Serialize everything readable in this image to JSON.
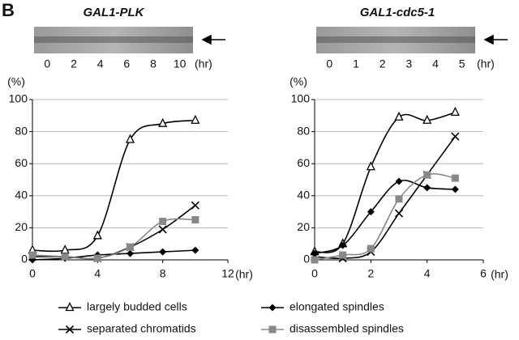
{
  "panel_label": "B",
  "chart_data": [
    {
      "type": "line",
      "title": "GAL1-PLK",
      "gel_lanes": [
        0,
        2,
        4,
        6,
        8,
        10
      ],
      "gel_unit": "(hr)",
      "y_label": "(%)",
      "x_label": "(hr)",
      "x": [
        0,
        2,
        4,
        6,
        8,
        10
      ],
      "xlim": [
        0,
        12
      ],
      "xticks": [
        0,
        4,
        8,
        12
      ],
      "ylim": [
        0,
        100
      ],
      "yticks": [
        0,
        20,
        40,
        60,
        80,
        100
      ],
      "grid": true,
      "series": [
        {
          "name": "largely budded cells",
          "color": "#000000",
          "marker": "triangle",
          "values": [
            6,
            6,
            15,
            75,
            85,
            87
          ]
        },
        {
          "name": "elongated spindles",
          "color": "#000000",
          "marker": "diamond",
          "values": [
            0,
            1,
            3,
            4,
            5,
            6
          ]
        },
        {
          "name": "separated chromatids",
          "color": "#000000",
          "marker": "x",
          "values": [
            2,
            2,
            1,
            8,
            19,
            34
          ]
        },
        {
          "name": "disassembled spindles",
          "color": "#888888",
          "marker": "square",
          "values": [
            3,
            2,
            1,
            8,
            24,
            25
          ]
        }
      ]
    },
    {
      "type": "line",
      "title": "GAL1-cdc5-1",
      "gel_lanes": [
        0,
        1,
        2,
        3,
        4,
        5
      ],
      "gel_unit": "(hr)",
      "y_label": "(%)",
      "x_label": "(hr)",
      "x": [
        0,
        1,
        2,
        3,
        4,
        5
      ],
      "xlim": [
        0,
        6
      ],
      "xticks": [
        0,
        2,
        4,
        6
      ],
      "ylim": [
        0,
        100
      ],
      "yticks": [
        0,
        20,
        40,
        60,
        80,
        100
      ],
      "grid": true,
      "series": [
        {
          "color": "#000000",
          "marker": "triangle",
          "values": [
            5,
            10,
            58,
            89,
            87,
            92
          ]
        },
        {
          "color": "#000000",
          "marker": "diamond",
          "values": [
            4,
            9,
            30,
            49,
            45,
            44
          ]
        },
        {
          "color": "#000000",
          "marker": "x",
          "values": [
            2,
            1,
            5,
            29,
            53,
            77
          ]
        },
        {
          "color": "#888888",
          "marker": "square",
          "values": [
            0,
            3,
            7,
            38,
            53,
            51
          ]
        }
      ]
    }
  ]
}
